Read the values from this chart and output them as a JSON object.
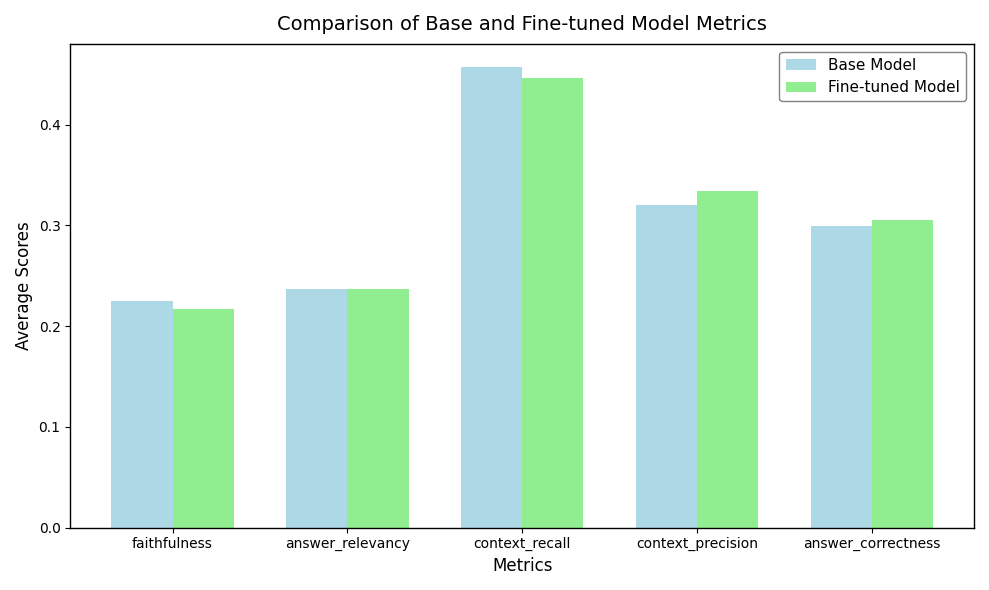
{
  "title": "Comparison of Base and Fine-tuned Model Metrics",
  "xlabel": "Metrics",
  "ylabel": "Average Scores",
  "categories": [
    "faithfulness",
    "answer_relevancy",
    "context_recall",
    "context_precision",
    "answer_correctness"
  ],
  "base_values": [
    0.225,
    0.237,
    0.457,
    0.32,
    0.299
  ],
  "finetuned_values": [
    0.217,
    0.237,
    0.446,
    0.334,
    0.305
  ],
  "base_color": "#add8e6",
  "finetuned_color": "#90ee90",
  "base_label": "Base Model",
  "finetuned_label": "Fine-tuned Model",
  "ylim": [
    0,
    0.48
  ],
  "bar_width": 0.35,
  "title_fontsize": 14,
  "axis_label_fontsize": 12,
  "tick_fontsize": 10,
  "legend_fontsize": 11,
  "figsize": [
    9.89,
    5.9
  ],
  "dpi": 100,
  "bg_color": "#ffffff",
  "figure_bg": "#ffffff"
}
